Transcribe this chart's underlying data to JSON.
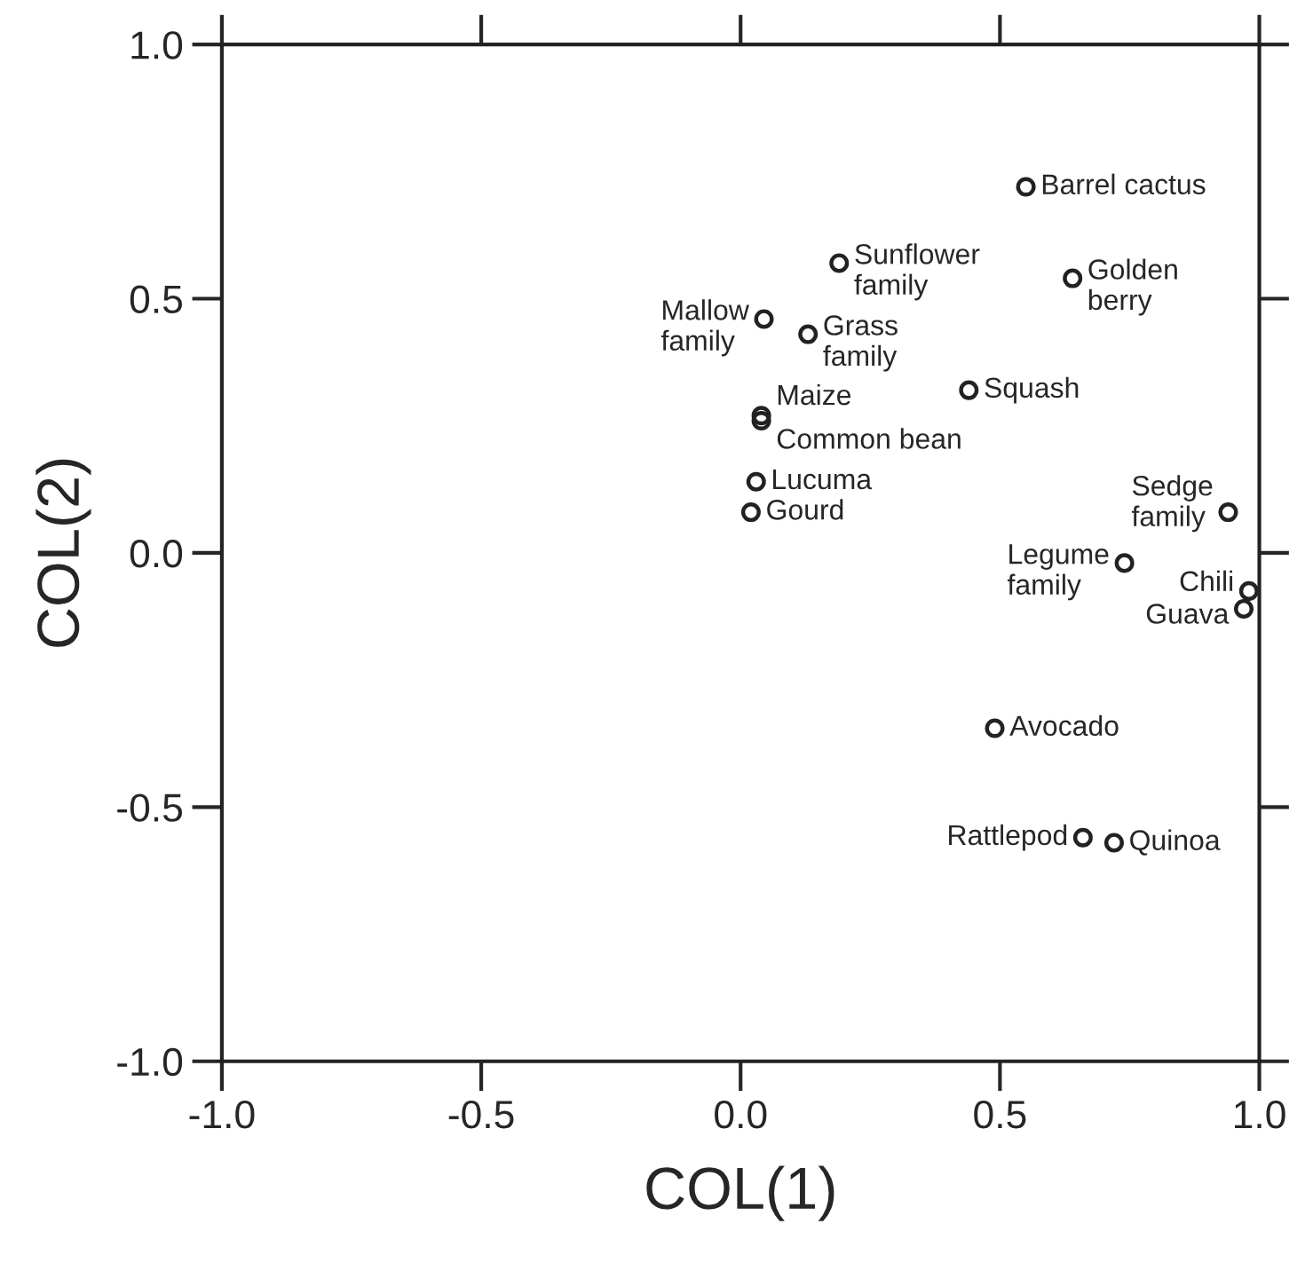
{
  "chart_data": {
    "type": "scatter",
    "xlabel": "COL(1)",
    "ylabel": "COL(2)",
    "x": [
      0.55,
      0.19,
      0.64,
      0.045,
      0.13,
      0.44,
      0.04,
      0.04,
      0.03,
      0.02,
      0.94,
      0.74,
      0.98,
      0.97,
      0.49,
      0.66,
      0.72
    ],
    "series": [
      {
        "color": "#222222",
        "values": [
          0.72,
          0.57,
          0.54,
          0.46,
          0.43,
          0.32,
          0.27,
          0.26,
          0.14,
          0.08,
          0.08,
          -0.02,
          -0.075,
          -0.11,
          -0.345,
          -0.56,
          -0.57
        ]
      }
    ],
    "marker": "circle",
    "grid": false,
    "legend": false,
    "xlim": [
      -1.0,
      1.0
    ],
    "ylim": [
      -1.0,
      1.0
    ],
    "xticks": [
      {
        "value": -1.0,
        "label": "-1.0"
      },
      {
        "value": -0.5,
        "label": "-0.5"
      },
      {
        "value": 0,
        "label": "0.0"
      },
      {
        "value": 0.5,
        "label": "0.5"
      },
      {
        "value": 1.0,
        "label": "1.0"
      }
    ],
    "yticks": [
      {
        "value": -1.0,
        "label": "-1.0"
      },
      {
        "value": -0.5,
        "label": "-0.5"
      },
      {
        "value": 0,
        "label": "0.0"
      },
      {
        "value": 0.5,
        "label": "0.5"
      },
      {
        "value": 1.0,
        "label": "1.0"
      }
    ],
    "annotations": [
      {
        "text": "Barrel cactus",
        "x": 0.55,
        "y": 0.72
      },
      {
        "text": "Sunflower\nfamily",
        "x": 0.19,
        "y": 0.57
      },
      {
        "text": "Golden\nberry",
        "x": 0.64,
        "y": 0.54
      },
      {
        "text": "Mallow\nfamily",
        "x": 0.045,
        "y": 0.46
      },
      {
        "text": "Grass\nfamily",
        "x": 0.13,
        "y": 0.43
      },
      {
        "text": "Squash",
        "x": 0.44,
        "y": 0.32
      },
      {
        "text": "Maize",
        "x": 0.04,
        "y": 0.27
      },
      {
        "text": "Common bean",
        "x": 0.04,
        "y": 0.26
      },
      {
        "text": "Lucuma",
        "x": 0.03,
        "y": 0.14
      },
      {
        "text": "Gourd",
        "x": 0.02,
        "y": 0.08
      },
      {
        "text": "Sedge\nfamily",
        "x": 0.94,
        "y": 0.08
      },
      {
        "text": "Legume\nfamily",
        "x": 0.74,
        "y": -0.02
      },
      {
        "text": "Chili",
        "x": 0.98,
        "y": -0.075
      },
      {
        "text": "Guava",
        "x": 0.97,
        "y": -0.11
      },
      {
        "text": "Avocado",
        "x": 0.49,
        "y": -0.345
      },
      {
        "text": "Rattlepod",
        "x": 0.66,
        "y": -0.56
      },
      {
        "text": "Quinoa",
        "x": 0.72,
        "y": -0.57
      }
    ]
  }
}
